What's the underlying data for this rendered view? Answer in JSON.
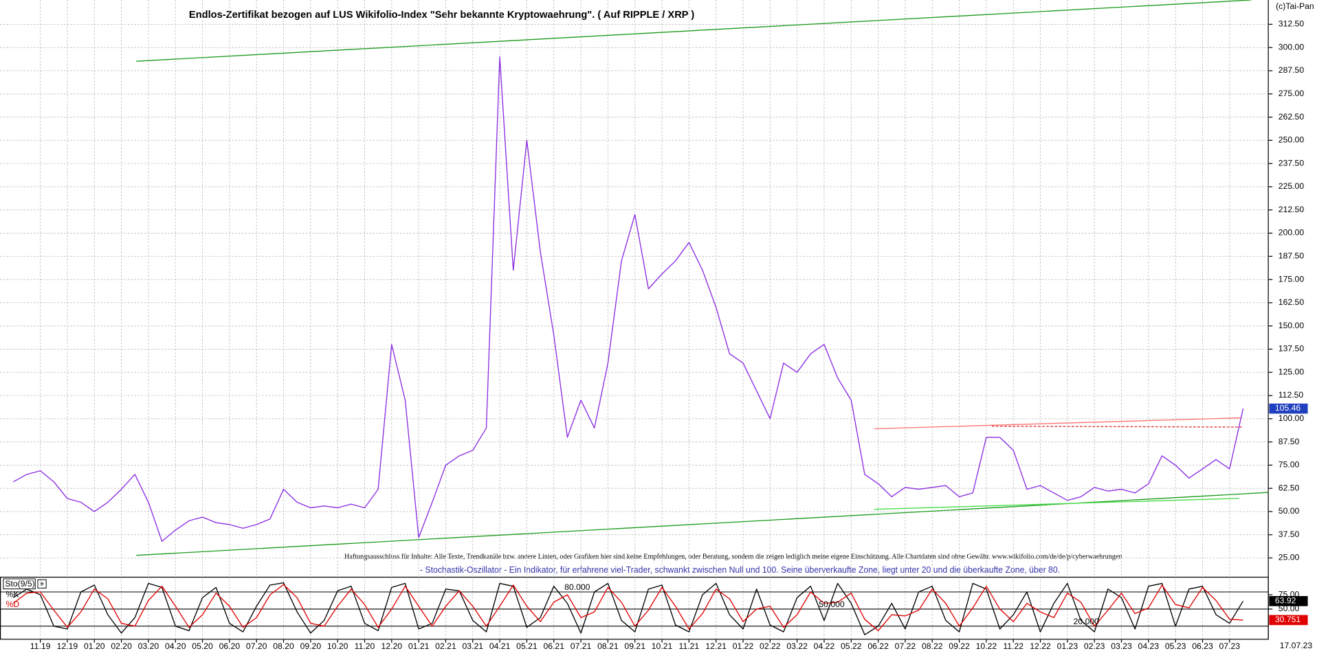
{
  "chart_data": [
    {
      "type": "line",
      "title": "Endlos-Zertifikat bezogen auf LUS Wikifolio-Index \"Sehr bekannte Kryptowaehrung\". ( Auf RIPPLE / XRP )",
      "copyright": "(c)Tai-Pan",
      "disclaimer": "Haftungsausschluss für Inhalte: Alle Texte, Trendkanäle bzw. andere Linien, oder Grafiken hier sind keine Empfehlungen, oder Beratung, sondern die zeigen lediglich meine eigene Einschätzung. Alle Chartdaten sind ohne Gewähr. www.wikifolio.com/de/de/p/cyberwaehrungen",
      "last_date": "17.07.23",
      "categories": [
        null,
        null,
        "11.19",
        null,
        "12.19",
        null,
        "01.20",
        null,
        "02.20",
        null,
        "03.20",
        null,
        "04.20",
        null,
        "05.20",
        null,
        "06.20",
        null,
        "07.20",
        null,
        "08.20",
        null,
        "09.20",
        null,
        "10.20",
        null,
        "11.20",
        null,
        "12.20",
        null,
        "01.21",
        null,
        "02.21",
        null,
        "03.21",
        null,
        "04.21",
        null,
        "05.21",
        null,
        "06.21",
        null,
        "07.21",
        null,
        "08.21",
        null,
        "09.21",
        null,
        "10.21",
        null,
        "11.21",
        null,
        "12.21",
        null,
        "01.22",
        null,
        "02.22",
        null,
        "03.22",
        null,
        "04.22",
        null,
        "05.22",
        null,
        "06.22",
        null,
        "07.22",
        null,
        "08.22",
        null,
        "09.22",
        null,
        "10.22",
        null,
        "11.22",
        null,
        "12.22",
        null,
        "01.23",
        null,
        "02.23",
        null,
        "03.23",
        null,
        "04.23",
        null,
        "05.23",
        null,
        "06.23",
        null,
        "07.23",
        null
      ],
      "series": [
        {
          "color": "#8a2be2",
          "values": [
            66,
            70,
            72,
            66,
            57,
            55,
            50,
            55,
            62,
            70,
            55,
            34,
            40,
            45,
            47,
            44,
            43,
            41,
            43,
            46,
            62,
            55,
            52,
            53,
            52,
            54,
            52,
            62,
            140,
            110,
            36,
            55,
            75,
            80,
            83,
            95,
            295,
            180,
            250,
            190,
            145,
            90,
            110,
            95,
            130,
            185,
            210,
            170,
            178,
            185,
            195,
            180,
            160,
            135,
            130,
            115,
            100,
            130,
            125,
            135,
            140,
            122,
            110,
            70,
            65,
            58,
            63,
            62,
            63,
            64,
            58,
            60,
            90,
            90,
            83,
            62,
            64,
            60,
            56,
            58,
            63,
            61,
            62,
            60,
            65,
            80,
            75,
            68,
            73,
            78,
            73,
            105.46
          ]
        }
      ],
      "lines": [
        {
          "color": "#1a9a1a",
          "x": [
            9.1,
            91.6
          ],
          "y": [
            292.6,
            325.6
          ],
          "dash": false
        },
        {
          "color": "#1a9a1a",
          "x": [
            9.1,
            92.9
          ],
          "y": [
            26.4,
            60.3
          ],
          "dash": false
        },
        {
          "color": "#44dd44",
          "x": [
            63.7,
            90.7
          ],
          "y": [
            51.2,
            57.1
          ],
          "dash": false
        },
        {
          "color": "#ff7070",
          "x": [
            63.7,
            90.9
          ],
          "y": [
            94.6,
            100.5
          ],
          "dash": false
        },
        {
          "color": "#e03030",
          "x": [
            72.4,
            90.9
          ],
          "y": [
            96,
            95.5
          ],
          "dash": true
        }
      ],
      "ylim": [
        16,
        325.6
      ],
      "yticks": [
        {
          "value": 25,
          "label": "25.00"
        },
        {
          "value": 37.5,
          "label": "37.50"
        },
        {
          "value": 50,
          "label": "50.00"
        },
        {
          "value": 62.5,
          "label": "62.50"
        },
        {
          "value": 75,
          "label": "75.00"
        },
        {
          "value": 87.5,
          "label": "87.50"
        },
        {
          "value": 100,
          "label": "100.00"
        },
        {
          "value": 112.5,
          "label": "112.50"
        },
        {
          "value": 125,
          "label": "125.00"
        },
        {
          "value": 137.5,
          "label": "137.50"
        },
        {
          "value": 150,
          "label": "150.00"
        },
        {
          "value": 162.5,
          "label": "162.50"
        },
        {
          "value": 175,
          "label": "175.00"
        },
        {
          "value": 187.5,
          "label": "187.50"
        },
        {
          "value": 200,
          "label": "200.00"
        },
        {
          "value": 212.5,
          "label": "212.50"
        },
        {
          "value": 225,
          "label": "225.00"
        },
        {
          "value": 237.5,
          "label": "237.50"
        },
        {
          "value": 250,
          "label": "250.00"
        },
        {
          "value": 262.5,
          "label": "262.50"
        },
        {
          "value": 275,
          "label": "275.00"
        },
        {
          "value": 287.5,
          "label": "287.50"
        },
        {
          "value": 300,
          "label": "300.00"
        },
        {
          "value": 312.5,
          "label": "312.50"
        }
      ],
      "grid": true
    },
    {
      "type": "line",
      "title": "- Stochastik-Oszillator - Ein Indikator, für erfahrene viel-Trader, schwankt zwischen Null und 100. Seine überverkaufte Zone, liegt unter 20 und die überkaufte Zone, über 80.",
      "indicator": "Sto(9/5)",
      "series": [
        {
          "name": "%K",
          "color": "#000000",
          "values": [
            70,
            85,
            75,
            20,
            15,
            80,
            92,
            40,
            8,
            35,
            95,
            88,
            20,
            12,
            70,
            88,
            25,
            10,
            55,
            92,
            96,
            45,
            8,
            30,
            82,
            90,
            25,
            12,
            88,
            95,
            15,
            25,
            85,
            82,
            30,
            10,
            95,
            90,
            18,
            35,
            90,
            60,
            8,
            80,
            95,
            30,
            10,
            85,
            92,
            22,
            10,
            75,
            95,
            40,
            15,
            85,
            22,
            10,
            70,
            90,
            30,
            95,
            60,
            5,
            20,
            60,
            15,
            80,
            90,
            30,
            10,
            95,
            85,
            15,
            40,
            80,
            10,
            60,
            95,
            30,
            10,
            85,
            70,
            15,
            90,
            95,
            20,
            85,
            90,
            40,
            25,
            63.92
          ]
        },
        {
          "name": "%D",
          "color": "#e00000",
          "values": [
            60,
            78,
            80,
            48,
            18,
            45,
            85,
            68,
            25,
            20,
            65,
            90,
            55,
            18,
            40,
            78,
            55,
            18,
            35,
            75,
            93,
            70,
            25,
            20,
            55,
            85,
            58,
            18,
            50,
            90,
            55,
            20,
            55,
            82,
            55,
            20,
            55,
            92,
            55,
            28,
            62,
            75,
            35,
            45,
            88,
            62,
            20,
            48,
            88,
            55,
            15,
            42,
            85,
            68,
            28,
            50,
            55,
            18,
            40,
            80,
            60,
            62,
            78,
            32,
            12,
            40,
            38,
            48,
            85,
            60,
            20,
            52,
            90,
            50,
            28,
            60,
            45,
            35,
            78,
            62,
            20,
            48,
            78,
            42,
            52,
            92,
            58,
            52,
            88,
            65,
            32,
            30.751
          ]
        }
      ],
      "levels": [
        {
          "value": 80,
          "label": "80.000"
        },
        {
          "value": 50,
          "label": "50.000"
        },
        {
          "value": 20,
          "label": "20.000"
        }
      ],
      "ylim": [
        0,
        100
      ],
      "yticks": [
        {
          "value": 75,
          "label": "75.00"
        },
        {
          "value": 50,
          "label": "50.00"
        }
      ]
    }
  ]
}
